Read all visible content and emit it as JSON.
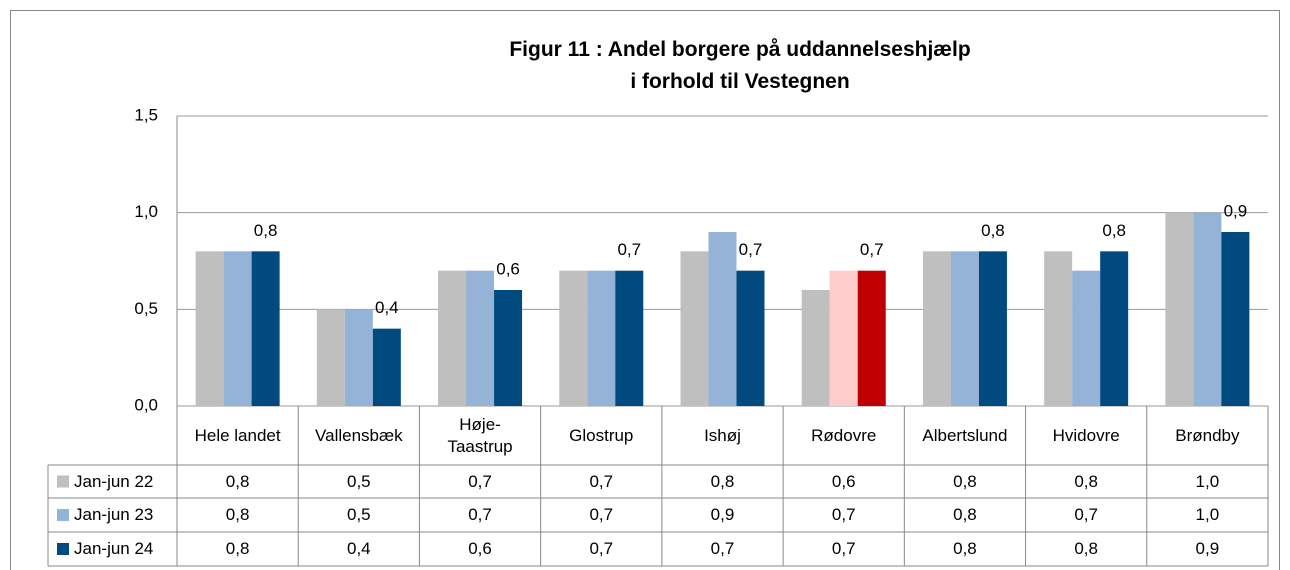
{
  "chart_data": {
    "type": "bar",
    "title": "Figur 11 : Andel borgere på uddannelseshjælp\ni forhold til Vestegnen",
    "categories": [
      "Hele landet",
      "Vallensbæk",
      "Høje-\nTaastrup",
      "Glostrup",
      "Ishøj",
      "Rødovre",
      "Albertslund",
      "Hvidovre",
      "Brøndby"
    ],
    "series": [
      {
        "name": "Jan-jun 22",
        "color": "#bfbfbf",
        "values": [
          0.8,
          0.5,
          0.7,
          0.7,
          0.8,
          0.6,
          0.8,
          0.8,
          1.0
        ],
        "value_labels": [
          "0,8",
          "0,5",
          "0,7",
          "0,7",
          "0,8",
          "0,6",
          "0,8",
          "0,8",
          "1,0"
        ]
      },
      {
        "name": "Jan-jun 23",
        "color": "#95b3d7",
        "highlight_color": "#ffcccc",
        "values": [
          0.8,
          0.5,
          0.7,
          0.7,
          0.9,
          0.7,
          0.8,
          0.7,
          1.0
        ],
        "value_labels": [
          "0,8",
          "0,5",
          "0,7",
          "0,7",
          "0,9",
          "0,7",
          "0,8",
          "0,7",
          "1,0"
        ]
      },
      {
        "name": "Jan-jun 24",
        "color": "#004a80",
        "highlight_color": "#c00000",
        "show_labels": true,
        "values": [
          0.8,
          0.4,
          0.6,
          0.7,
          0.7,
          0.7,
          0.8,
          0.8,
          0.9
        ],
        "value_labels": [
          "0,8",
          "0,4",
          "0,6",
          "0,7",
          "0,7",
          "0,7",
          "0,8",
          "0,8",
          "0,9"
        ]
      }
    ],
    "highlight_index": 5,
    "ylim": [
      0,
      1.5
    ],
    "yticks": [
      {
        "value": 0,
        "label": "0,0"
      },
      {
        "value": 0.5,
        "label": "0,5"
      },
      {
        "value": 1.0,
        "label": "1,0"
      },
      {
        "value": 1.5,
        "label": "1,5"
      }
    ],
    "grid": true
  }
}
